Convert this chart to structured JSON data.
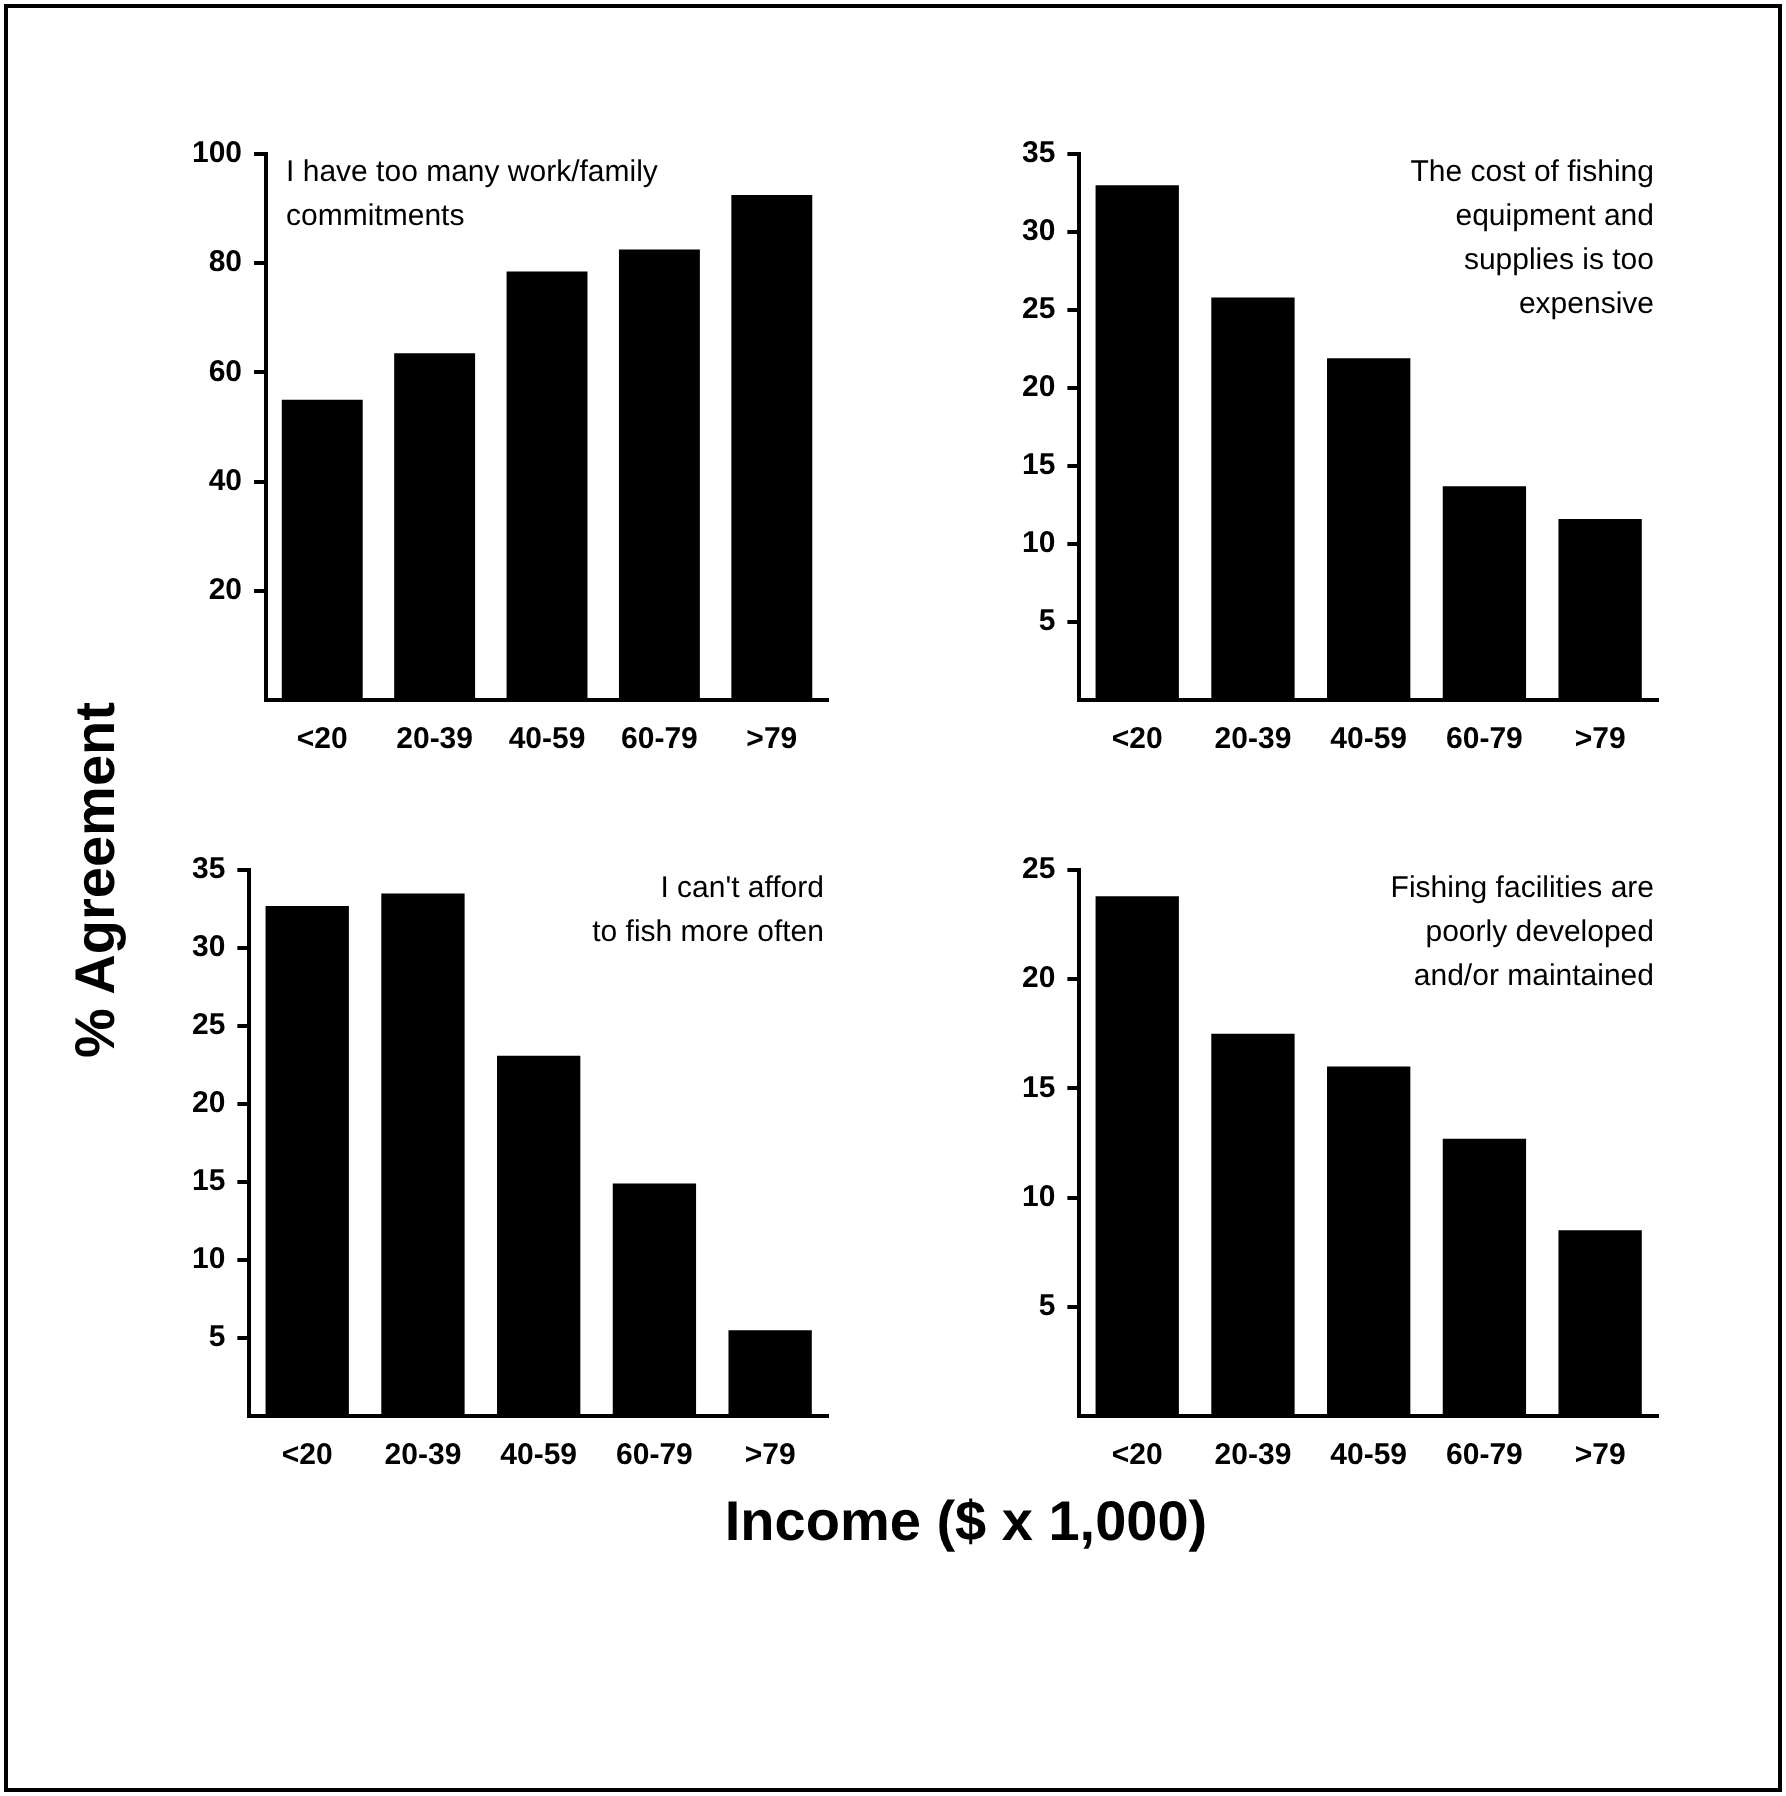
{
  "chart_data": [
    {
      "type": "bar",
      "ylabel": "% Agreement",
      "xlabel": "Income ($ x 1,000)",
      "categories": [
        "<20",
        "20-39",
        "40-59",
        "60-79",
        ">79"
      ],
      "values": [
        55,
        63.5,
        78.5,
        82.5,
        92.5
      ],
      "color": "#000000",
      "ylim": [
        0,
        100
      ],
      "yticks": [
        20,
        40,
        60,
        80,
        100
      ],
      "annotations": [
        "I have too many work/family\ncommitments"
      ]
    },
    {
      "type": "bar",
      "categories": [
        "<20",
        "20-39",
        "40-59",
        "60-79",
        ">79"
      ],
      "values": [
        33,
        25.8,
        21.9,
        13.7,
        11.6
      ],
      "color": "#000000",
      "ylim": [
        0,
        35
      ],
      "yticks": [
        5,
        10,
        15,
        20,
        25,
        30,
        35
      ],
      "annotations": [
        "The cost of fishing\nequipment and\nsupplies is too\nexpensive"
      ]
    },
    {
      "type": "bar",
      "categories": [
        "<20",
        "20-39",
        "40-59",
        "60-79",
        ">79"
      ],
      "values": [
        32.7,
        33.5,
        23.1,
        14.9,
        5.5
      ],
      "color": "#000000",
      "ylim": [
        0,
        35
      ],
      "yticks": [
        5,
        10,
        15,
        20,
        25,
        30,
        35
      ],
      "annotations": [
        "I can't afford\nto fish more often"
      ]
    },
    {
      "type": "bar",
      "categories": [
        "<20",
        "20-39",
        "40-59",
        "60-79",
        ">79"
      ],
      "values": [
        23.8,
        17.5,
        16,
        12.7,
        8.5
      ],
      "color": "#000000",
      "ylim": [
        0,
        25
      ],
      "yticks": [
        5,
        10,
        15,
        20,
        25
      ],
      "annotations": [
        "Fishing facilities are\npoorly developed\nand/or maintained"
      ]
    }
  ]
}
